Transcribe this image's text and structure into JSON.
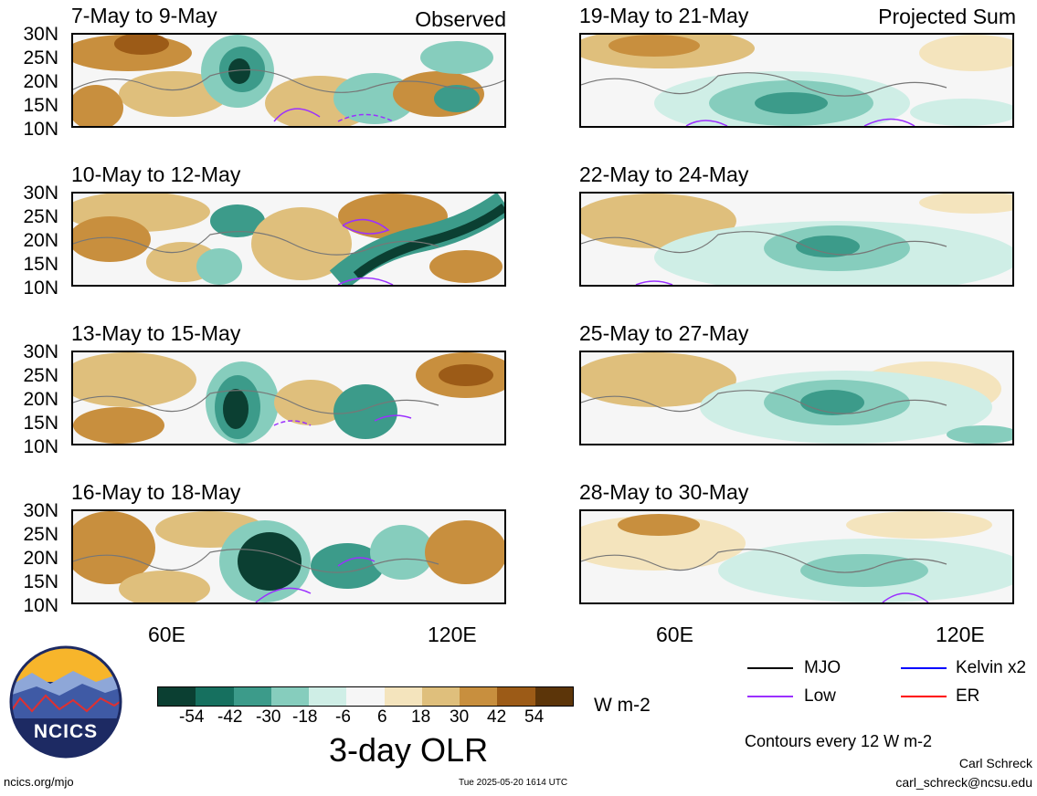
{
  "header": {
    "observed_label": "Observed",
    "projected_label": "Projected Sum"
  },
  "panels_left": [
    {
      "title": "7-May to 9-May"
    },
    {
      "title": "10-May to 12-May"
    },
    {
      "title": "13-May to 15-May"
    },
    {
      "title": "16-May to 18-May"
    }
  ],
  "panels_right": [
    {
      "title": "19-May to 21-May"
    },
    {
      "title": "22-May to 24-May"
    },
    {
      "title": "25-May to 27-May"
    },
    {
      "title": "28-May to 30-May"
    }
  ],
  "lat_labels": [
    "30N",
    "25N",
    "20N",
    "15N",
    "10N"
  ],
  "lon_labels": [
    "60E",
    "120E"
  ],
  "colorbar": {
    "ticks": [
      "-54",
      "-42",
      "-30",
      "-18",
      "-6",
      "6",
      "18",
      "30",
      "42",
      "54"
    ],
    "colors": [
      "#0b3f32",
      "#16705f",
      "#3c9b8a",
      "#86cdbd",
      "#cfeee6",
      "#f6f6f6",
      "#f4e4bd",
      "#dfbf7c",
      "#c88f3e",
      "#9c5b17",
      "#5c3509"
    ],
    "units": "W m-2",
    "title": "3-day OLR"
  },
  "legend": {
    "mjo": "MJO",
    "kelvin": "Kelvin x2",
    "low": "Low",
    "er": "ER",
    "colors": {
      "mjo": "#000000",
      "kelvin": "#0000ff",
      "low": "#9b30ff",
      "er": "#ff0000"
    },
    "contour_note": "Contours every 12 W m-2"
  },
  "logo": {
    "text": "NCICS"
  },
  "footer": {
    "url": "ncics.org/mjo",
    "timestamp": "Tue 2025-05-20 1614 UTC",
    "author": "Carl Schreck",
    "email": "carl_schreck@ncsu.edu"
  }
}
